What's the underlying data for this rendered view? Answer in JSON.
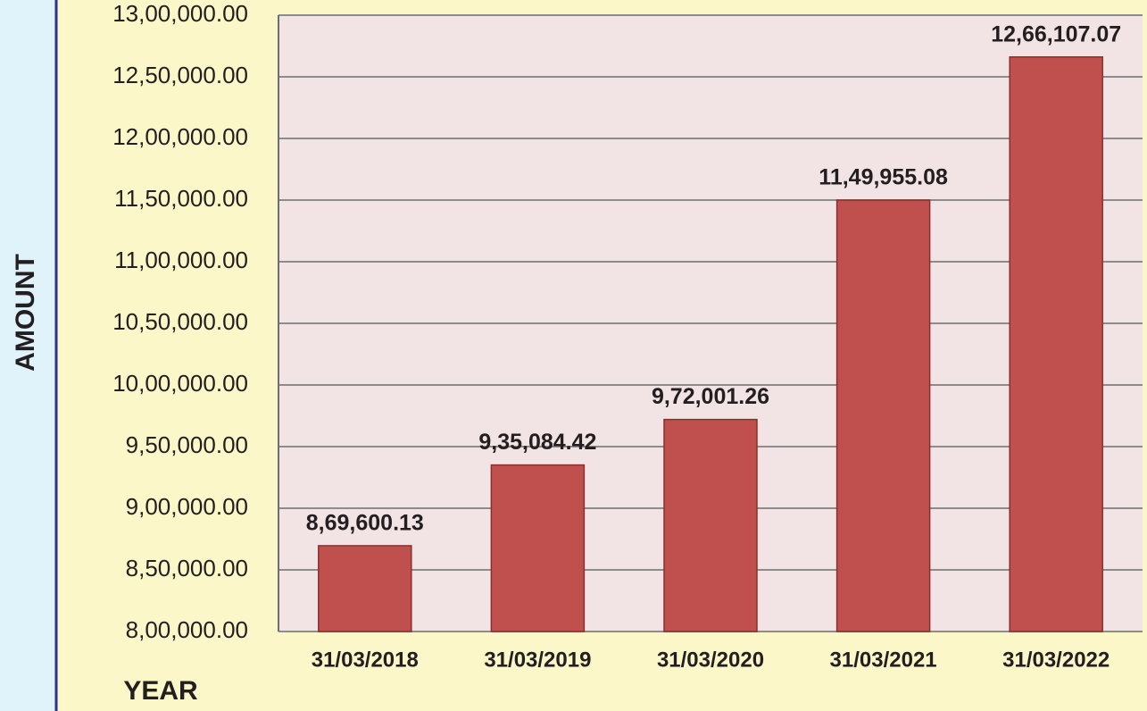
{
  "chart_data": {
    "type": "bar",
    "x_label": "YEAR",
    "y_label": "AMOUNT",
    "categories": [
      "31/03/2018",
      "31/03/2019",
      "31/03/2020",
      "31/03/2021",
      "31/03/2022"
    ],
    "values": [
      869600.13,
      935084.42,
      972001.26,
      1149955.08,
      1266107.07
    ],
    "value_labels": [
      "8,69,600.13",
      "9,35,084.42",
      "9,72,001.26",
      "11,49,955.08",
      "12,66,107.07"
    ],
    "color": "#c0504d",
    "ylim": [
      800000,
      1300000
    ],
    "yticks": [
      {
        "value": 800000,
        "label": "8,00,000.00"
      },
      {
        "value": 850000,
        "label": "8,50,000.00"
      },
      {
        "value": 900000,
        "label": "9,00,000.00"
      },
      {
        "value": 950000,
        "label": "9,50,000.00"
      },
      {
        "value": 1000000,
        "label": "10,00,000.00"
      },
      {
        "value": 1050000,
        "label": "10,50,000.00"
      },
      {
        "value": 1100000,
        "label": "11,00,000.00"
      },
      {
        "value": 1150000,
        "label": "11,50,000.00"
      },
      {
        "value": 1200000,
        "label": "12,00,000.00"
      },
      {
        "value": 1250000,
        "label": "12,50,000.00"
      },
      {
        "value": 1300000,
        "label": "13,00,000.00"
      }
    ],
    "grid": true
  }
}
